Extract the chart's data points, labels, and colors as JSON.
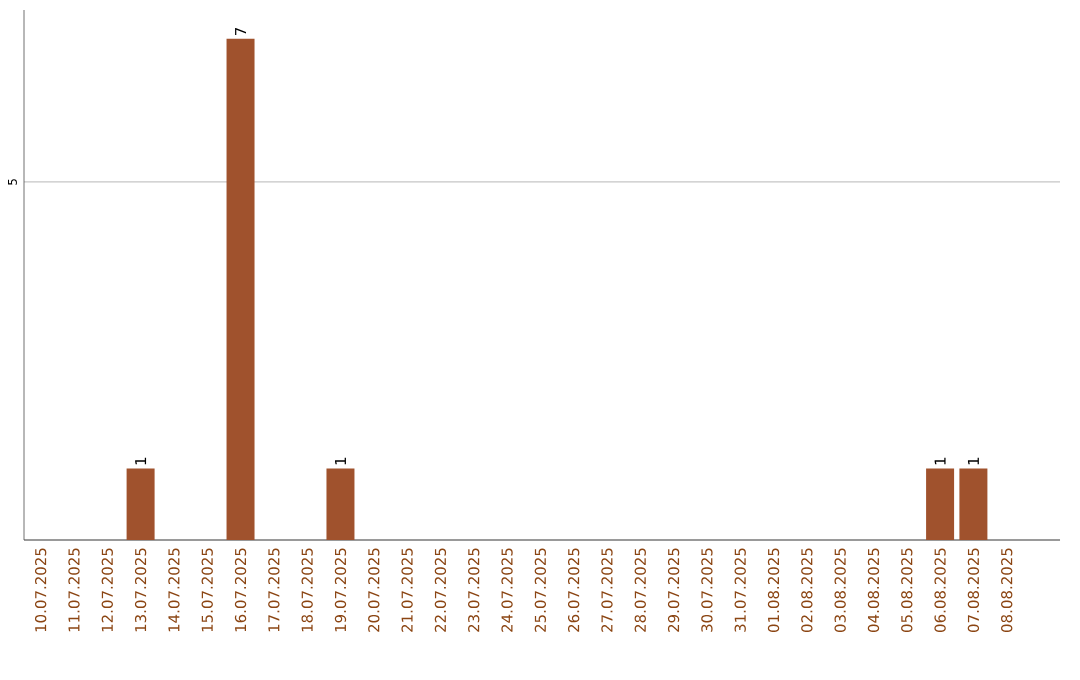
{
  "chart_data": {
    "type": "bar",
    "categories": [
      "10.07.2025",
      "11.07.2025",
      "12.07.2025",
      "13.07.2025",
      "14.07.2025",
      "15.07.2025",
      "16.07.2025",
      "17.07.2025",
      "18.07.2025",
      "19.07.2025",
      "20.07.2025",
      "21.07.2025",
      "22.07.2025",
      "23.07.2025",
      "24.07.2025",
      "25.07.2025",
      "26.07.2025",
      "27.07.2025",
      "28.07.2025",
      "29.07.2025",
      "30.07.2025",
      "31.07.2025",
      "01.08.2025",
      "02.08.2025",
      "03.08.2025",
      "04.08.2025",
      "05.08.2025",
      "06.08.2025",
      "07.08.2025",
      "08.08.2025"
    ],
    "values": [
      0,
      0,
      0,
      1,
      0,
      0,
      7,
      0,
      0,
      1,
      0,
      0,
      0,
      0,
      0,
      0,
      0,
      0,
      0,
      0,
      0,
      0,
      0,
      0,
      0,
      0,
      0,
      1,
      1,
      0
    ],
    "value_labels": [
      null,
      null,
      null,
      "1",
      null,
      null,
      "7",
      null,
      null,
      "1",
      null,
      null,
      null,
      null,
      null,
      null,
      null,
      null,
      null,
      null,
      null,
      null,
      null,
      null,
      null,
      null,
      null,
      "1",
      "1",
      null
    ],
    "color": "#a0522d",
    "ylim": [
      0,
      7.4
    ],
    "yticks": [
      5
    ],
    "grid": "y"
  }
}
